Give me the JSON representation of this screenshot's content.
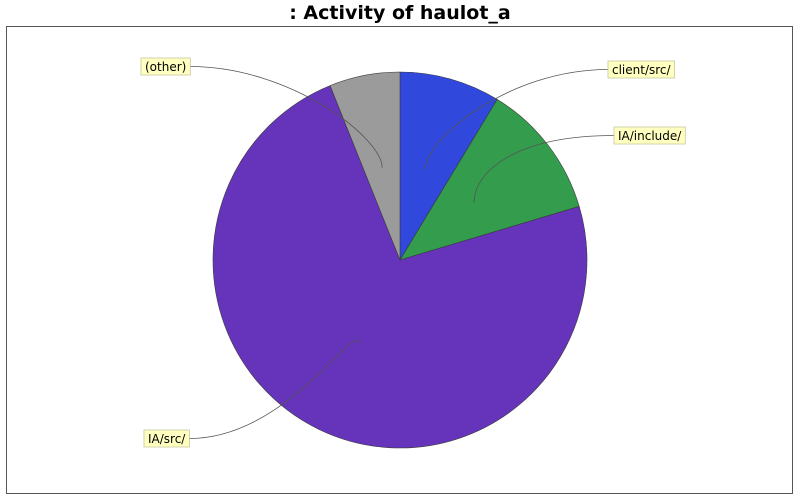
{
  "chart_data": {
    "type": "pie",
    "title": ": Activity of haulot_a",
    "start_angle_deg": 90,
    "direction": "clockwise",
    "legend": "none",
    "slices": [
      {
        "label": "client/src/",
        "value": 8.7,
        "color": "#3048dc"
      },
      {
        "label": "IA/include/",
        "value": 11.7,
        "color": "#339c4d"
      },
      {
        "label": "IA/src/",
        "value": 73.5,
        "color": "#6633bb"
      },
      {
        "label": "(other)",
        "value": 6.1,
        "color": "#9b9b9b"
      }
    ]
  }
}
